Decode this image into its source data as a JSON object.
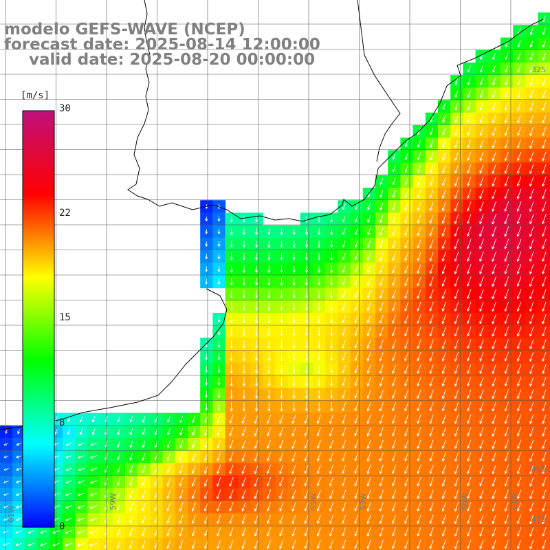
{
  "title": {
    "line1": "modelo GEFS-WAVE (NCEP)",
    "line2": "forecast date: 2025-08-14 12:00:00",
    "line3": "valid date: 2025-08-20 00:00:00"
  },
  "colorbar": {
    "unit": "[m/s]",
    "ticks": [
      "30",
      "22",
      "15",
      "8",
      "0"
    ],
    "stops": [
      "#0000ff",
      "#00ffff",
      "#00ff00",
      "#ffff00",
      "#ff0000",
      "#c0107a"
    ]
  },
  "lat_labels": [
    "32S",
    "",
    "",
    "",
    "",
    "",
    "",
    "",
    "40S",
    "41S"
  ],
  "lon_labels": [
    "61W",
    "59W",
    "",
    "",
    "55W",
    "53W",
    "",
    "",
    "50W",
    "51W"
  ],
  "colors": {
    "land": "#ffffff",
    "coast": "#000000",
    "grid": "#555555",
    "arrow": "#ffffff"
  }
}
